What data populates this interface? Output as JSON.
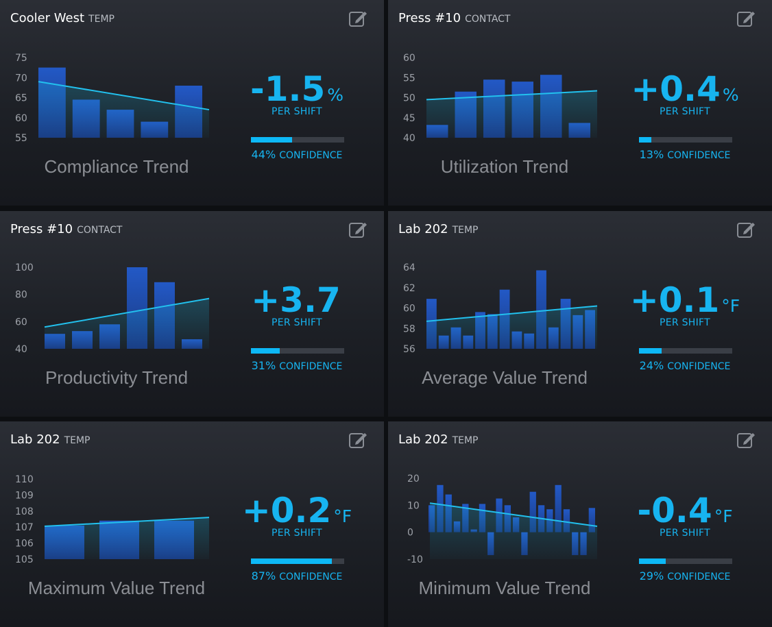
{
  "cards": [
    {
      "name": "Cooler West",
      "type": "TEMP",
      "trend_label": "Compliance Trend",
      "metric": {
        "value": "-1.5",
        "unit": "%",
        "per": "PER SHIFT",
        "confidence": 44,
        "confidence_text": "44%",
        "confidence_label": "CONFIDENCE"
      },
      "chart_data": {
        "type": "bar",
        "yticks": [
          "75",
          "70",
          "65",
          "60",
          "55"
        ],
        "ylim": [
          55,
          75
        ],
        "values": [
          72.5,
          64.5,
          62,
          59,
          68
        ],
        "trend": [
          69,
          62
        ]
      }
    },
    {
      "name": "Press #10",
      "type": "CONTACT",
      "trend_label": "Utilization Trend",
      "metric": {
        "value": "+0.4",
        "unit": "%",
        "per": "PER SHIFT",
        "confidence": 13,
        "confidence_text": "13%",
        "confidence_label": "CONFIDENCE"
      },
      "chart_data": {
        "type": "bar",
        "yticks": [
          "60",
          "55",
          "50",
          "45",
          "40"
        ],
        "ylim": [
          40,
          60
        ],
        "values": [
          43.2,
          51.5,
          54.5,
          54,
          55.7,
          43.7
        ],
        "trend": [
          49.5,
          51.7
        ]
      }
    },
    {
      "name": "Press #10",
      "type": "CONTACT",
      "trend_label": "Productivity Trend",
      "metric": {
        "value": "+3.7",
        "unit": "",
        "per": "PER SHIFT",
        "confidence": 31,
        "confidence_text": "31%",
        "confidence_label": "CONFIDENCE"
      },
      "chart_data": {
        "type": "bar",
        "yticks": [
          "100",
          "80",
          "60",
          "40"
        ],
        "ylim": [
          40,
          100
        ],
        "values": [
          51,
          53,
          58,
          100,
          89,
          47
        ],
        "trend": [
          56,
          77
        ]
      }
    },
    {
      "name": "Lab 202",
      "type": "TEMP",
      "trend_label": "Average Value Trend",
      "metric": {
        "value": "+0.1",
        "unit": "°F",
        "per": "PER SHIFT",
        "confidence": 24,
        "confidence_text": "24%",
        "confidence_label": "CONFIDENCE"
      },
      "chart_data": {
        "type": "bar",
        "yticks": [
          "64",
          "62",
          "60",
          "58",
          "56"
        ],
        "ylim": [
          56,
          64
        ],
        "values": [
          60.9,
          57.3,
          58.1,
          57.3,
          59.6,
          59.4,
          61.8,
          57.7,
          57.5,
          63.7,
          58.1,
          60.9,
          59.3,
          59.8
        ],
        "trend": [
          58.7,
          60.2
        ]
      }
    },
    {
      "name": "Lab 202",
      "type": "TEMP",
      "trend_label": "Maximum Value Trend",
      "metric": {
        "value": "+0.2",
        "unit": "°F",
        "per": "PER SHIFT",
        "confidence": 87,
        "confidence_text": "87%",
        "confidence_label": "CONFIDENCE"
      },
      "chart_data": {
        "type": "bar",
        "yticks": [
          "110",
          "109",
          "108",
          "107",
          "106",
          "105"
        ],
        "ylim": [
          105,
          110
        ],
        "values": [
          107.1,
          107.4,
          107.4
        ],
        "trend": [
          107.05,
          107.6
        ]
      }
    },
    {
      "name": "Lab 202",
      "type": "TEMP",
      "trend_label": "Minimum Value Trend",
      "metric": {
        "value": "-0.4",
        "unit": "°F",
        "per": "PER SHIFT",
        "confidence": 29,
        "confidence_text": "29%",
        "confidence_label": "CONFIDENCE"
      },
      "chart_data": {
        "type": "bar",
        "yticks": [
          "20",
          "10",
          "0",
          "-10"
        ],
        "ylim": [
          -10,
          20
        ],
        "values": [
          10,
          17.5,
          14,
          4,
          10.5,
          1,
          10.5,
          -8.5,
          12.5,
          10,
          5.5,
          -8.5,
          15,
          10,
          8.5,
          17.5,
          8.5,
          -8.5,
          -8.5,
          9
        ],
        "trend": [
          10.8,
          2.2
        ]
      }
    }
  ]
}
